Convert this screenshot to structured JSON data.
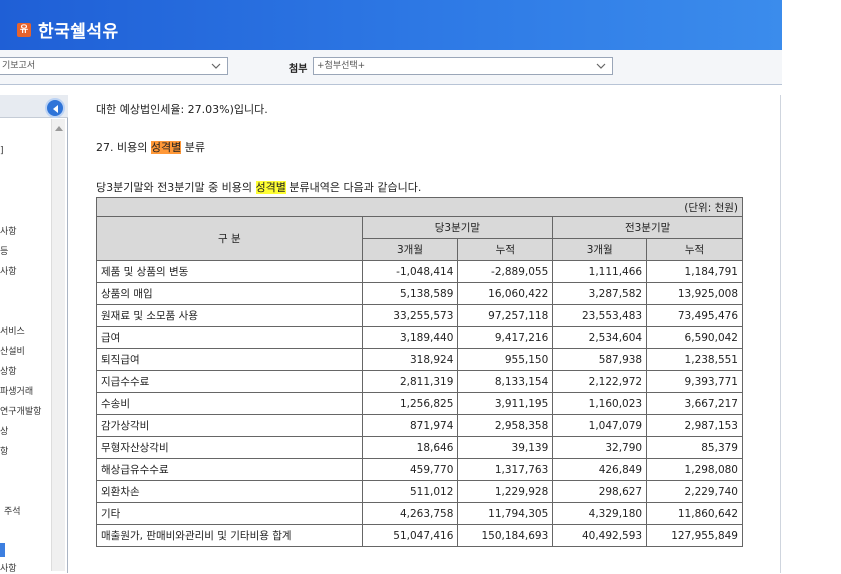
{
  "header": {
    "logo_char": "유",
    "title": "한국쉘석유"
  },
  "toolbar": {
    "report_select": "기보고서",
    "attach_label": "첨부",
    "attach_select": "+첨부선택+"
  },
  "sidebar": {
    "items": [
      "]",
      "사항",
      "등",
      "사항",
      "서비스",
      "산설비",
      "상항",
      "파생거래",
      "연구개발항",
      "상",
      "항",
      "주석",
      "",
      "사항"
    ]
  },
  "document": {
    "line1": "대한 예상법인세율: 27.03%)입니다.",
    "section_prefix": "27. 비용의 ",
    "section_highlight": "성격별",
    "section_suffix": " 분류",
    "intro_prefix": "당3분기말와 전3분기말 중 비용의 ",
    "intro_highlight": "성격별",
    "intro_suffix": " 분류내역은 다음과 같습니다.",
    "table": {
      "unit": "(단위: 천원)",
      "col_group_label": "구 분",
      "period1": "당3분기말",
      "period2": "전3분기말",
      "sub_3m": "3개월",
      "sub_cum": "누적",
      "rows": [
        {
          "label": "제품 및 상품의 변동",
          "v": [
            "-1,048,414",
            "-2,889,055",
            "1,111,466",
            "1,184,791"
          ]
        },
        {
          "label": "상품의 매입",
          "v": [
            "5,138,589",
            "16,060,422",
            "3,287,582",
            "13,925,008"
          ]
        },
        {
          "label": "원재료 및 소모품 사용",
          "v": [
            "33,255,573",
            "97,257,118",
            "23,553,483",
            "73,495,476"
          ]
        },
        {
          "label": "급여",
          "v": [
            "3,189,440",
            "9,417,216",
            "2,534,604",
            "6,590,042"
          ]
        },
        {
          "label": "퇴직급여",
          "v": [
            "318,924",
            "955,150",
            "587,938",
            "1,238,551"
          ]
        },
        {
          "label": "지급수수료",
          "v": [
            "2,811,319",
            "8,133,154",
            "2,122,972",
            "9,393,771"
          ]
        },
        {
          "label": "수송비",
          "v": [
            "1,256,825",
            "3,911,195",
            "1,160,023",
            "3,667,217"
          ]
        },
        {
          "label": "감가상각비",
          "v": [
            "871,974",
            "2,958,358",
            "1,047,079",
            "2,987,153"
          ]
        },
        {
          "label": "무형자산상각비",
          "v": [
            "18,646",
            "39,139",
            "32,790",
            "85,379"
          ]
        },
        {
          "label": "해상급유수수료",
          "v": [
            "459,770",
            "1,317,763",
            "426,849",
            "1,298,080"
          ]
        },
        {
          "label": "외환차손",
          "v": [
            "511,012",
            "1,229,928",
            "298,627",
            "2,229,740"
          ]
        },
        {
          "label": "기타",
          "v": [
            "4,263,758",
            "11,794,305",
            "4,329,180",
            "11,860,642"
          ]
        },
        {
          "label": "매출원가, 판매비와관리비 및 기타비용 합계",
          "v": [
            "51,047,416",
            "150,184,693",
            "40,492,593",
            "127,955,849"
          ]
        }
      ]
    }
  }
}
